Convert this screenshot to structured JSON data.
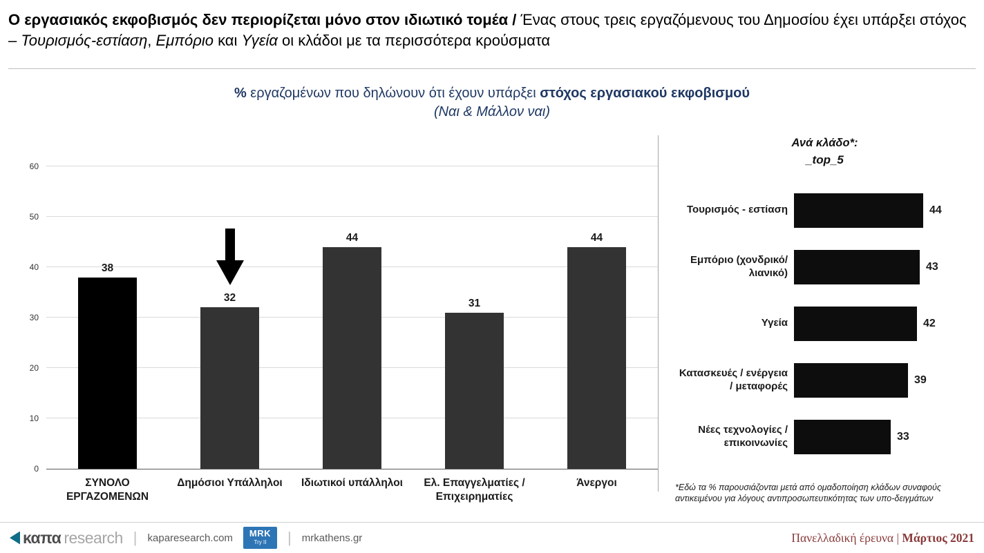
{
  "header": {
    "title_bold": "Ο εργασιακός εκφοβισμός δεν περιορίζεται μόνο στον ιδιωτικό τομέα / ",
    "title_seg1": "Ένας στους τρεις εργαζόμενους του Δημοσίου έχει υπάρξει στόχος – ",
    "title_it1": "Τουρισμός-εστίαση",
    "title_seg2": ", ",
    "title_it2": "Εμπόριο",
    "title_seg3": " και ",
    "title_it3": "Υγεία",
    "title_seg4": " οι κλάδοι με τα περισσότερα κρούσματα"
  },
  "subtitle": {
    "pct_bold": "%",
    "mid": " εργαζομένων που δηλώνουν ότι έχουν υπάρξει ",
    "bold": "στόχος εργασιακού εκφοβισμού",
    "line2": "(Ναι & Μάλλον ναι)",
    "text_color": "#1f3864"
  },
  "chart_data": [
    {
      "type": "bar",
      "title": "% εργαζομένων που δηλώνουν ότι έχουν υπάρξει στόχος εργασιακού εκφοβισμού (Ναι & Μάλλον ναι)",
      "categories": [
        "ΣΥΝΟΛΟ ΕΡΓΑΖΟΜΕΝΩΝ",
        "Δημόσιοι Υπάλληλοι",
        "Ιδιωτικοί υπάλληλοι",
        "Ελ. Επαγγελματίες / Επιχειρηματίες",
        "Άνεργοι"
      ],
      "values": [
        38,
        32,
        44,
        31,
        44
      ],
      "colors": [
        "#000000",
        "#333333",
        "#333333",
        "#333333",
        "#333333"
      ],
      "ylim": [
        0,
        60
      ],
      "yticks": [
        0,
        10,
        20,
        30,
        40,
        50,
        60
      ],
      "grid": true,
      "legend": false,
      "annotation": {
        "type": "down-arrow",
        "target_category": "Δημόσιοι Υπάλληλοι",
        "target_index": 1
      }
    },
    {
      "type": "bar",
      "orientation": "horizontal",
      "title": "Ανά κλάδο*: _top_5",
      "categories": [
        "Τουρισμός - εστίαση",
        "Εμπόριο (χονδρικό/λιανικό)",
        "Υγεία",
        "Κατασκευές / ενέργεια / μεταφορές",
        "Νέες τεχνολογίες / επικοινωνίες"
      ],
      "values": [
        44,
        43,
        42,
        39,
        33
      ],
      "color": "#0d0d0d",
      "xlim": [
        0,
        50
      ],
      "grid": false,
      "legend": false
    }
  ],
  "right_panel": {
    "title_line1": "Ανά κλάδο*:",
    "title_line2": "_top_5",
    "footnote": "*Εδώ τα % παρουσιάζονται μετά από ομαδοποίηση κλάδων συναφούς αντικειμένου για λόγους αντιπροσωπευτικότητας των υπο-δειγμάτων"
  },
  "footer": {
    "logo_kapa": "καπα",
    "logo_research": "research",
    "separator": "|",
    "site_kapa": "kaparesearch.com",
    "mrk_line1": "MRK",
    "mrk_line2": "Try II",
    "site_mrk": "mrkathens.gr",
    "survey_label": "Πανελλαδική έρευνα | ",
    "survey_date": "Μάρτιος 2021",
    "mrk_badge_color": "#2e75b6",
    "survey_text_color": "#8b3a3a",
    "logo_icon_color": "#0e6e86",
    "subtitle_color": "#1f3864"
  }
}
